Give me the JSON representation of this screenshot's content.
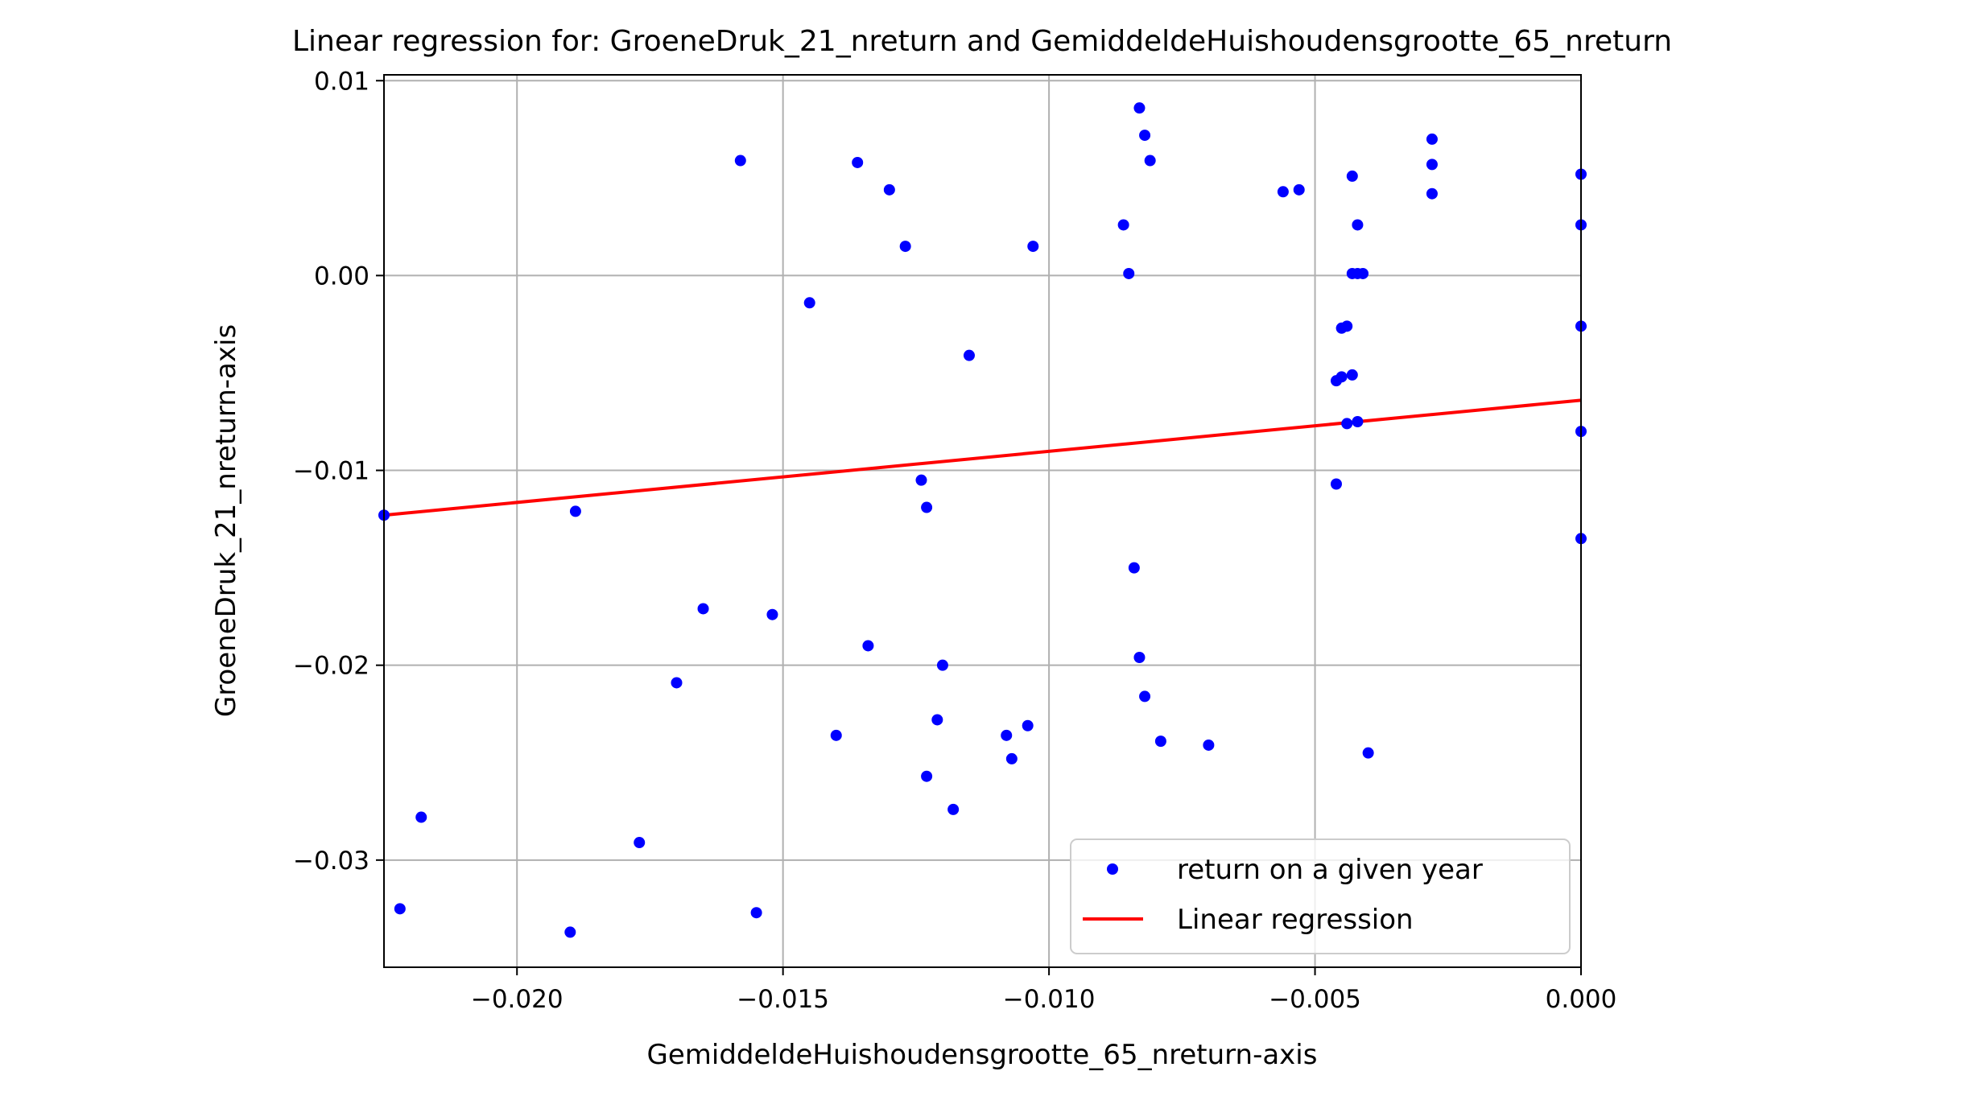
{
  "chart_data": {
    "type": "scatter",
    "title": "Linear regression for: GroeneDruk_21_nreturn and GemiddeldeHuishoudensgrootte_65_nreturn",
    "xlabel": "GemiddeldeHuishoudensgrootte_65_nreturn-axis",
    "ylabel": "GroeneDruk_21_nreturn-axis",
    "xlim": [
      -0.0225,
      0.0
    ],
    "ylim": [
      -0.0355,
      0.0103
    ],
    "xticks": [
      -0.02,
      -0.015,
      -0.01,
      -0.005,
      0.0
    ],
    "xtick_labels": [
      "−0.020",
      "−0.015",
      "−0.010",
      "−0.005",
      "0.000"
    ],
    "yticks": [
      0.01,
      0.0,
      -0.01,
      -0.02,
      -0.03
    ],
    "ytick_labels": [
      "0.01",
      "0.00",
      "−0.01",
      "−0.02",
      "−0.03"
    ],
    "grid": true,
    "legend_position": "lower-right",
    "series": [
      {
        "name": "return on a given year",
        "kind": "scatter",
        "color": "#0000ff",
        "points": [
          [
            -0.0225,
            -0.0123
          ],
          [
            -0.0222,
            -0.0325
          ],
          [
            -0.0218,
            -0.0278
          ],
          [
            -0.019,
            -0.0337
          ],
          [
            -0.0189,
            -0.0121
          ],
          [
            -0.0177,
            -0.0291
          ],
          [
            -0.017,
            -0.0209
          ],
          [
            -0.0165,
            -0.0171
          ],
          [
            -0.0158,
            0.0059
          ],
          [
            -0.0155,
            -0.0327
          ],
          [
            -0.0152,
            -0.0174
          ],
          [
            -0.0145,
            -0.0014
          ],
          [
            -0.014,
            -0.0236
          ],
          [
            -0.0136,
            0.0058
          ],
          [
            -0.0134,
            -0.019
          ],
          [
            -0.013,
            0.0044
          ],
          [
            -0.0127,
            0.0015
          ],
          [
            -0.0124,
            -0.0105
          ],
          [
            -0.0123,
            -0.0119
          ],
          [
            -0.0123,
            -0.0257
          ],
          [
            -0.0121,
            -0.0228
          ],
          [
            -0.012,
            -0.02
          ],
          [
            -0.0118,
            -0.0274
          ],
          [
            -0.0115,
            -0.0041
          ],
          [
            -0.0108,
            -0.0236
          ],
          [
            -0.0107,
            -0.0248
          ],
          [
            -0.0104,
            -0.0231
          ],
          [
            -0.0103,
            0.0015
          ],
          [
            -0.0086,
            0.0026
          ],
          [
            -0.0085,
            0.0001
          ],
          [
            -0.0084,
            -0.015
          ],
          [
            -0.0083,
            0.0086
          ],
          [
            -0.0083,
            -0.0196
          ],
          [
            -0.0082,
            0.0072
          ],
          [
            -0.0082,
            -0.0216
          ],
          [
            -0.0081,
            0.0059
          ],
          [
            -0.0079,
            -0.0239
          ],
          [
            -0.007,
            -0.0241
          ],
          [
            -0.0056,
            0.0043
          ],
          [
            -0.0053,
            0.0044
          ],
          [
            -0.0046,
            -0.0054
          ],
          [
            -0.0046,
            -0.0107
          ],
          [
            -0.0045,
            -0.0027
          ],
          [
            -0.0045,
            -0.0052
          ],
          [
            -0.0044,
            -0.0026
          ],
          [
            -0.0044,
            -0.0076
          ],
          [
            -0.0043,
            -0.0051
          ],
          [
            -0.0043,
            0.0001
          ],
          [
            -0.0043,
            0.0051
          ],
          [
            -0.0042,
            0.0001
          ],
          [
            -0.0042,
            0.0026
          ],
          [
            -0.0042,
            -0.0075
          ],
          [
            -0.0041,
            0.0001
          ],
          [
            -0.004,
            -0.0245
          ],
          [
            -0.0028,
            0.007
          ],
          [
            -0.0028,
            0.0057
          ],
          [
            -0.0028,
            0.0042
          ],
          [
            0.0,
            0.0052
          ],
          [
            0.0,
            0.0026
          ],
          [
            0.0,
            -0.0026
          ],
          [
            0.0,
            -0.008
          ],
          [
            0.0,
            -0.0135
          ]
        ]
      },
      {
        "name": "Linear regression",
        "kind": "line",
        "color": "#ff0000",
        "x": [
          -0.0225,
          0.0
        ],
        "y": [
          -0.0123,
          -0.0064
        ]
      }
    ]
  }
}
